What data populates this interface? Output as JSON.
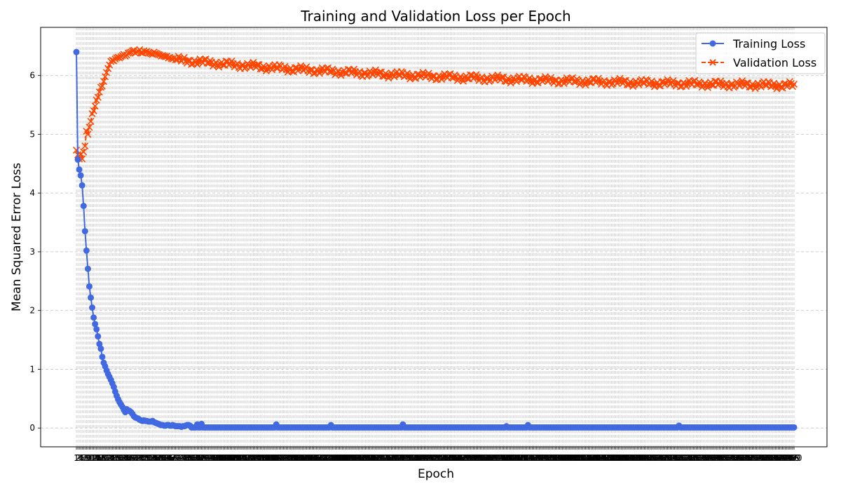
{
  "chart_data": {
    "type": "line",
    "title": "Training and Validation Loss per Epoch",
    "xlabel": "Epoch",
    "ylabel": "Mean Squared Error Loss",
    "xlim": [
      1,
      500
    ],
    "ylim": [
      -0.32,
      6.82
    ],
    "y_ticks": [
      0,
      1,
      2,
      3,
      4,
      5,
      6
    ],
    "x_tick_every_epoch": true,
    "x_tick_label_visible": [
      "1",
      "2",
      "3",
      "500"
    ],
    "grid": {
      "horizontal": true,
      "vertical": true,
      "style": "dashed"
    },
    "legend_position": "top-right",
    "series": [
      {
        "name": "Training Loss",
        "color": "#4169e1",
        "marker": "circle",
        "line_style": "solid",
        "x_start": 1,
        "x_step": 1,
        "values": [
          6.4,
          4.57,
          4.4,
          4.3,
          4.13,
          3.78,
          3.35,
          3.02,
          2.71,
          2.41,
          2.22,
          2.05,
          1.88,
          1.77,
          1.68,
          1.56,
          1.43,
          1.35,
          1.21,
          1.11,
          1.05,
          0.98,
          0.92,
          0.87,
          0.82,
          0.76,
          0.7,
          0.62,
          0.55,
          0.49,
          0.44,
          0.4,
          0.36,
          0.31,
          0.27,
          0.32,
          0.3,
          0.29,
          0.27,
          0.24,
          0.2,
          0.18,
          0.17,
          0.16,
          0.14,
          0.13,
          0.12,
          0.13,
          0.12,
          0.12,
          0.11,
          0.11,
          0.11,
          0.12,
          0.1,
          0.09,
          0.08,
          0.07,
          0.06,
          0.05,
          0.05,
          0.04,
          0.04,
          0.05,
          0.05,
          0.04,
          0.04,
          0.05,
          0.04,
          0.03,
          0.03,
          0.03,
          0.03,
          0.02,
          0.03,
          0.03,
          0.04,
          0.05,
          0.05,
          0.04
        ],
        "tail_value": 0.01,
        "tail_bumps": [
          {
            "x": 85,
            "y": 0.06
          },
          {
            "x": 88,
            "y": 0.07
          },
          {
            "x": 140,
            "y": 0.06
          },
          {
            "x": 178,
            "y": 0.05
          },
          {
            "x": 228,
            "y": 0.06
          },
          {
            "x": 300,
            "y": 0.03
          },
          {
            "x": 315,
            "y": 0.05
          },
          {
            "x": 420,
            "y": 0.04
          }
        ]
      },
      {
        "name": "Validation Loss",
        "color": "#ff4500",
        "marker": "x",
        "line_style": "dashed",
        "x_start": 1,
        "x_step": 1,
        "values": [
          4.73,
          4.65,
          4.58,
          4.66,
          4.58,
          4.7,
          4.8,
          5.05,
          5.0,
          5.12,
          5.22,
          5.35,
          5.4,
          5.48,
          5.58,
          5.63,
          5.72,
          5.8,
          5.82,
          5.9,
          5.98,
          6.05,
          6.12,
          6.18,
          6.24,
          6.26,
          6.25,
          6.28,
          6.3,
          6.31,
          6.3,
          6.32,
          6.34,
          6.36,
          6.33,
          6.35,
          6.38,
          6.39,
          6.4,
          6.42,
          6.43,
          6.38,
          6.4,
          6.41,
          6.44,
          6.39,
          6.38,
          6.42,
          6.4,
          6.41,
          6.39,
          6.38,
          6.37,
          6.36,
          6.4,
          6.38,
          6.37,
          6.36,
          6.35,
          6.33,
          6.34,
          6.33,
          6.32,
          6.33,
          6.3,
          6.31,
          6.29,
          6.28,
          6.3,
          6.27
        ],
        "tail_end": 5.76,
        "tail_decay": 220
      }
    ]
  }
}
